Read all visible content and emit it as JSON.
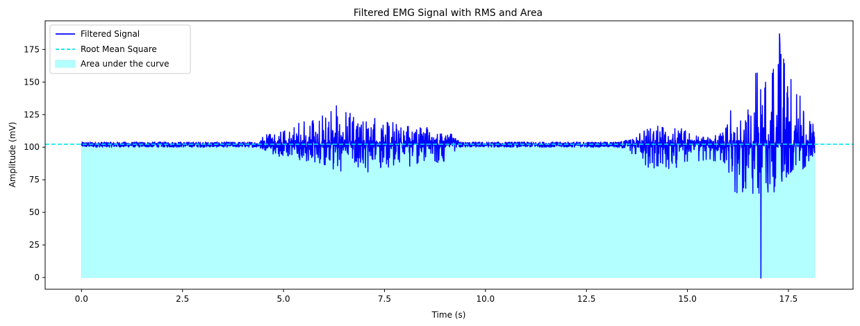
{
  "chart_data": {
    "type": "line",
    "title": "Filtered EMG Signal with RMS and Area",
    "xlabel": "Time (s)",
    "ylabel": "Amplitude (mV)",
    "xlim": [
      -0.9,
      19.1
    ],
    "ylim": [
      -9,
      197
    ],
    "x_ticks": [
      0.0,
      2.5,
      5.0,
      7.5,
      10.0,
      12.5,
      15.0,
      17.5
    ],
    "x_tick_labels": [
      "0.0",
      "2.5",
      "5.0",
      "7.5",
      "10.0",
      "12.5",
      "15.0",
      "17.5"
    ],
    "y_ticks": [
      0,
      25,
      50,
      75,
      100,
      125,
      150,
      175
    ],
    "y_tick_labels": [
      "0",
      "25",
      "50",
      "75",
      "100",
      "125",
      "150",
      "175"
    ],
    "grid": false,
    "legend_position": "top-left",
    "duration": 18.15,
    "baseline": 102.5,
    "rms": 102.3,
    "signal_min": {
      "x": 16.82,
      "y": -0.5
    },
    "signal_max": {
      "x": 17.28,
      "y": 187
    },
    "envelope_time": [
      0.0,
      4.4,
      4.5,
      5.0,
      6.0,
      6.3,
      7.0,
      8.0,
      9.0,
      9.4,
      9.5,
      12.5,
      13.2,
      13.3,
      13.8,
      14.0,
      15.0,
      15.5,
      15.9,
      16.0,
      16.5,
      16.8,
      17.0,
      17.3,
      17.5,
      18.0,
      18.15
    ],
    "envelope_upper": [
      104,
      104,
      110,
      114,
      126,
      132,
      124,
      117,
      114,
      104,
      104,
      104,
      104,
      104,
      110,
      117,
      114,
      107,
      112,
      125,
      150,
      163,
      160,
      187,
      160,
      130,
      115
    ],
    "envelope_lower": [
      100,
      100,
      95,
      92,
      85,
      80,
      80,
      85,
      88,
      100,
      100,
      100,
      100,
      99,
      92,
      82,
      85,
      90,
      88,
      72,
      52,
      42,
      58,
      70,
      78,
      84,
      95
    ],
    "series": [
      {
        "name": "Filtered Signal",
        "color": "#0000ff",
        "style": "solid"
      },
      {
        "name": "Root Mean Square",
        "color": "#00e5ee",
        "style": "dashed"
      },
      {
        "name": "Area under the curve",
        "color": "#b3ffff",
        "style": "fill"
      }
    ]
  }
}
